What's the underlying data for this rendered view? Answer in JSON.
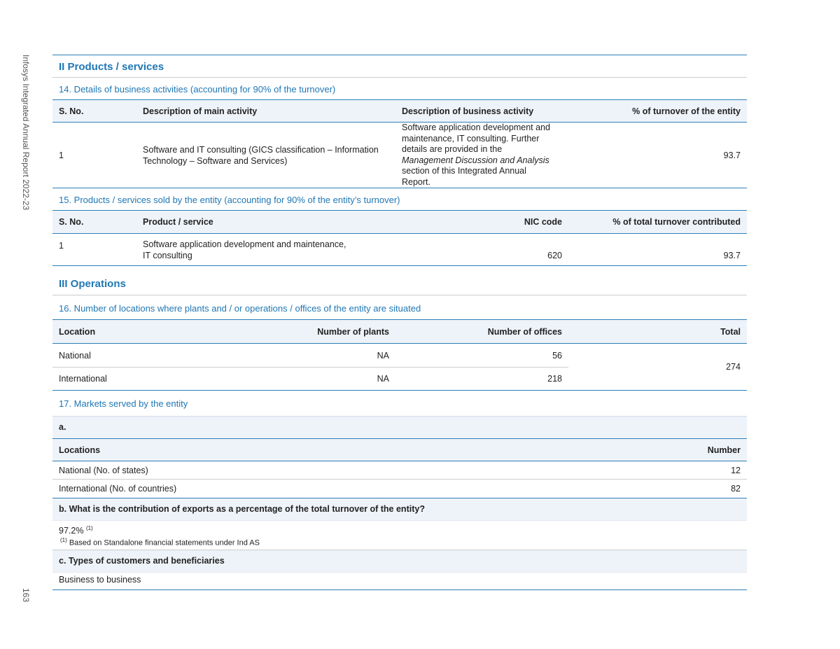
{
  "sidebar": {
    "report_title": "Infosys Integrated Annual Report 2022-23",
    "page_number": "163"
  },
  "products_services": {
    "heading": "II Products / services",
    "business_activities": {
      "title": "14. Details of business activities (accounting for 90% of the turnover)",
      "headers": [
        "S. No.",
        "Description of main activity",
        "Description of business activity",
        "% of turnover of the entity"
      ],
      "rows": [
        {
          "s_no": 1,
          "main_activity": "Software and IT consulting (GICS classification – Information Technology – Software and Services)",
          "business_activity": {
            "text_before": "Software application development and maintenance, IT consulting. Further details are provided in the ",
            "italic": "Management Discussion and Analysis",
            "text_after": " section of this Integrated Annual Report."
          },
          "turnover_percent": 93.7
        }
      ]
    },
    "products_sold": {
      "title": "15. Products / services sold by the entity (accounting for 90% of the entity’s turnover)",
      "headers": [
        "S. No.",
        "Product / service",
        "NIC code",
        "% of total turnover contributed"
      ],
      "rows": [
        {
          "s_no": 1,
          "product_service": "Software application development and maintenance, IT consulting",
          "nic_code": 620,
          "turnover_percent": 93.7
        }
      ]
    }
  },
  "operations": {
    "heading": "III Operations",
    "locations": {
      "title": "16. Number of locations where plants and / or operations / offices of the entity are situated",
      "headers": [
        "Location",
        "Number of plants",
        "Number of offices",
        "Total"
      ],
      "rows": [
        {
          "location": "National",
          "plants": "NA",
          "offices": 56
        },
        {
          "location": "International",
          "plants": "NA",
          "offices": 218
        }
      ],
      "total": 274
    },
    "markets": {
      "title": "17. Markets served by the entity",
      "a": {
        "label": "a.",
        "headers": [
          "Locations",
          "Number"
        ],
        "rows": [
          {
            "location": "National (No. of states)",
            "number": 12
          },
          {
            "location": "International (No. of countries)",
            "number": 82
          }
        ]
      },
      "b": {
        "question": "b. What is the contribution of exports as a percentage of the total turnover of the entity?",
        "answer": "97.2%",
        "footnote_mark": "(1)",
        "footnote_text": "Based on Standalone financial statements under Ind AS"
      },
      "c": {
        "question": "c. Types of customers and beneficiaries",
        "answer": "Business to business"
      }
    }
  }
}
